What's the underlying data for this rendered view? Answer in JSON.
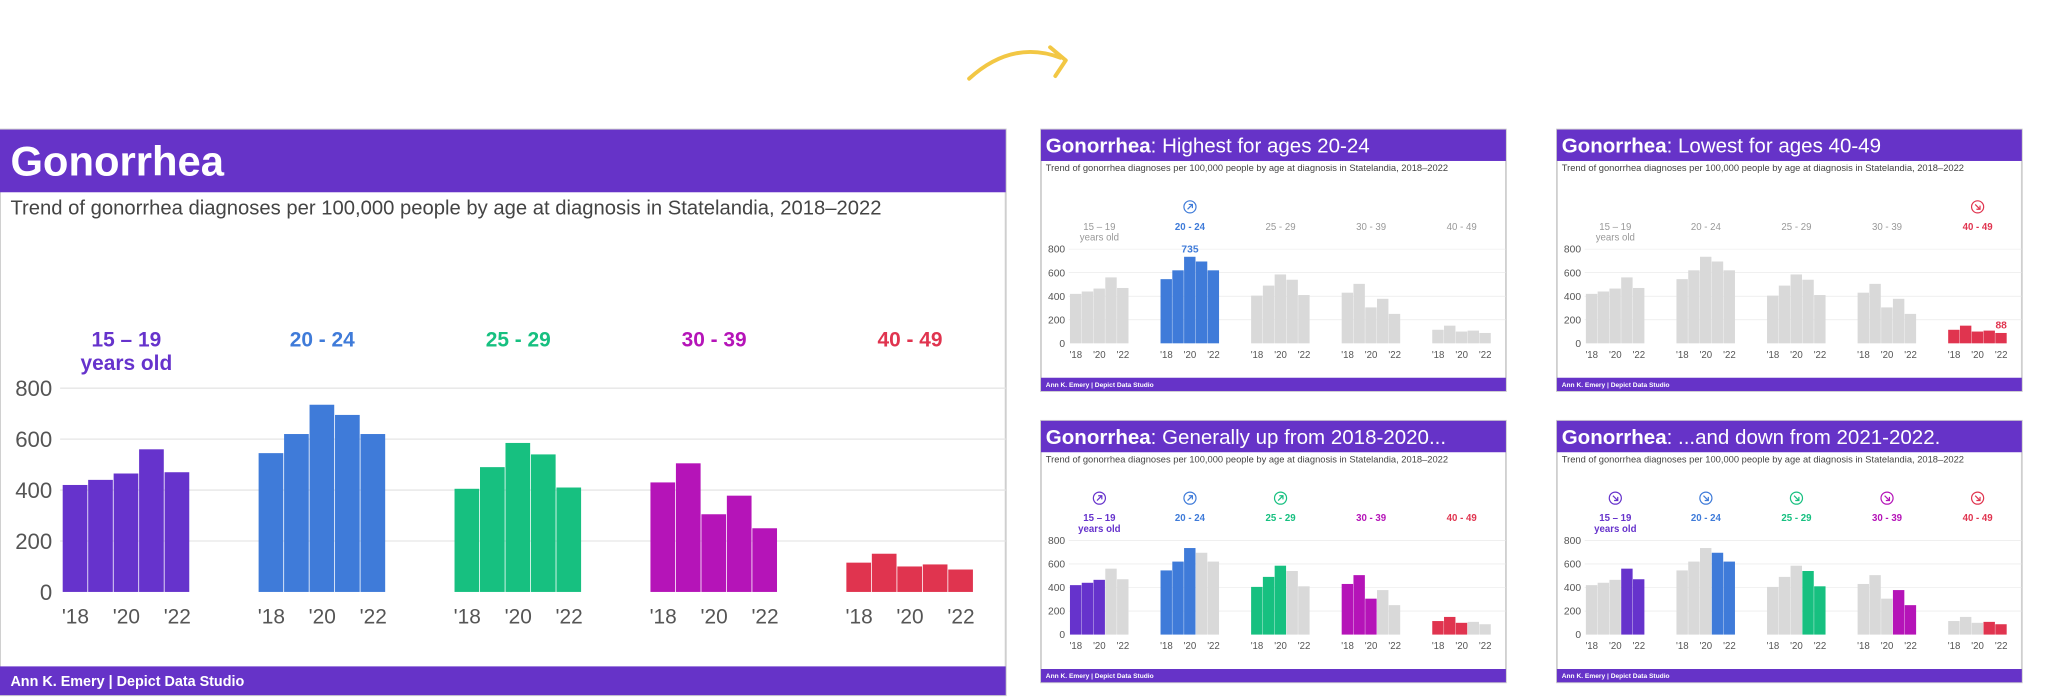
{
  "colors": {
    "brand": "#6633C8",
    "muted": "#D9D9D9",
    "arrow": "#F2C744",
    "groups": [
      "#6633CC",
      "#3F7BD9",
      "#17C080",
      "#B514B8",
      "#E0344F"
    ]
  },
  "footer": "Ann K. Emery  |  Depict Data Studio",
  "subtitle": "Trend of gonorrhea diagnoses per 100,000 people by age at diagnosis in Statelandia, 2018–2022",
  "chart_data": {
    "type": "bar",
    "title": "Gonorrhea",
    "subtitle": "Trend of gonorrhea diagnoses per 100,000 people by age at diagnosis in Statelandia, 2018–2022",
    "x": [
      2018,
      2019,
      2020,
      2021,
      2022
    ],
    "x_tick_labels": [
      "'18",
      "'20",
      "'22"
    ],
    "ylim": [
      0,
      800
    ],
    "y_ticks": [
      0,
      200,
      400,
      600,
      800
    ],
    "grid": true,
    "series": [
      {
        "name": "15 – 19",
        "name_line2": "years old",
        "values": [
          420,
          440,
          465,
          560,
          470
        ]
      },
      {
        "name": "20 - 24",
        "values": [
          545,
          620,
          735,
          695,
          620
        ]
      },
      {
        "name": "25 - 29",
        "values": [
          405,
          490,
          585,
          540,
          410
        ]
      },
      {
        "name": "30 - 39",
        "values": [
          430,
          505,
          305,
          378,
          250
        ]
      },
      {
        "name": "40 - 49",
        "values": [
          115,
          150,
          100,
          108,
          88
        ]
      }
    ]
  },
  "slides": [
    {
      "title_bold": "Gonorrhea",
      "title_rest": "",
      "highlight": [
        [
          0,
          1,
          2,
          3,
          4
        ],
        [
          0,
          1,
          2,
          3,
          4
        ],
        [
          0,
          1,
          2,
          3,
          4
        ],
        [
          0,
          1,
          2,
          3,
          4
        ],
        [
          0,
          1,
          2,
          3,
          4
        ]
      ],
      "label_colored": [
        true,
        true,
        true,
        true,
        true
      ],
      "icons": [
        null,
        null,
        null,
        null,
        null
      ],
      "callout": null
    },
    {
      "title_bold": "Gonorrhea",
      "title_rest": ": Highest for ages 20-24",
      "highlight": [
        [],
        [
          0,
          1,
          2,
          3,
          4
        ],
        [],
        [],
        []
      ],
      "label_colored": [
        false,
        true,
        false,
        false,
        false
      ],
      "icons": [
        null,
        "arrow-up-right",
        null,
        null,
        null
      ],
      "callout": {
        "group": 1,
        "year": 2,
        "text": "735"
      }
    },
    {
      "title_bold": "Gonorrhea",
      "title_rest": ": Lowest for ages 40-49",
      "highlight": [
        [],
        [],
        [],
        [],
        [
          0,
          1,
          2,
          3,
          4
        ]
      ],
      "label_colored": [
        false,
        false,
        false,
        false,
        true
      ],
      "icons": [
        null,
        null,
        null,
        null,
        "arrow-down-right"
      ],
      "callout": {
        "group": 4,
        "year": 4,
        "text": "88"
      }
    },
    {
      "title_bold": "Gonorrhea",
      "title_rest": ": Generally up from 2018-2020...",
      "highlight": [
        [
          0,
          1,
          2
        ],
        [
          0,
          1,
          2
        ],
        [
          0,
          1,
          2
        ],
        [
          0,
          1,
          2
        ],
        [
          0,
          1,
          2
        ]
      ],
      "label_colored": [
        true,
        true,
        true,
        true,
        true
      ],
      "icons": [
        "arrow-up-right",
        "arrow-up-right",
        "arrow-up-right",
        null,
        null
      ],
      "callout": null
    },
    {
      "title_bold": "Gonorrhea",
      "title_rest": ": ...and down from 2021-2022.",
      "highlight": [
        [
          3,
          4
        ],
        [
          3,
          4
        ],
        [
          3,
          4
        ],
        [
          3,
          4
        ],
        [
          3,
          4
        ]
      ],
      "label_colored": [
        true,
        true,
        true,
        true,
        true
      ],
      "icons": [
        "arrow-down-right",
        "arrow-down-right",
        "arrow-down-right",
        "arrow-down-right",
        "arrow-down-right"
      ],
      "callout": null
    }
  ]
}
